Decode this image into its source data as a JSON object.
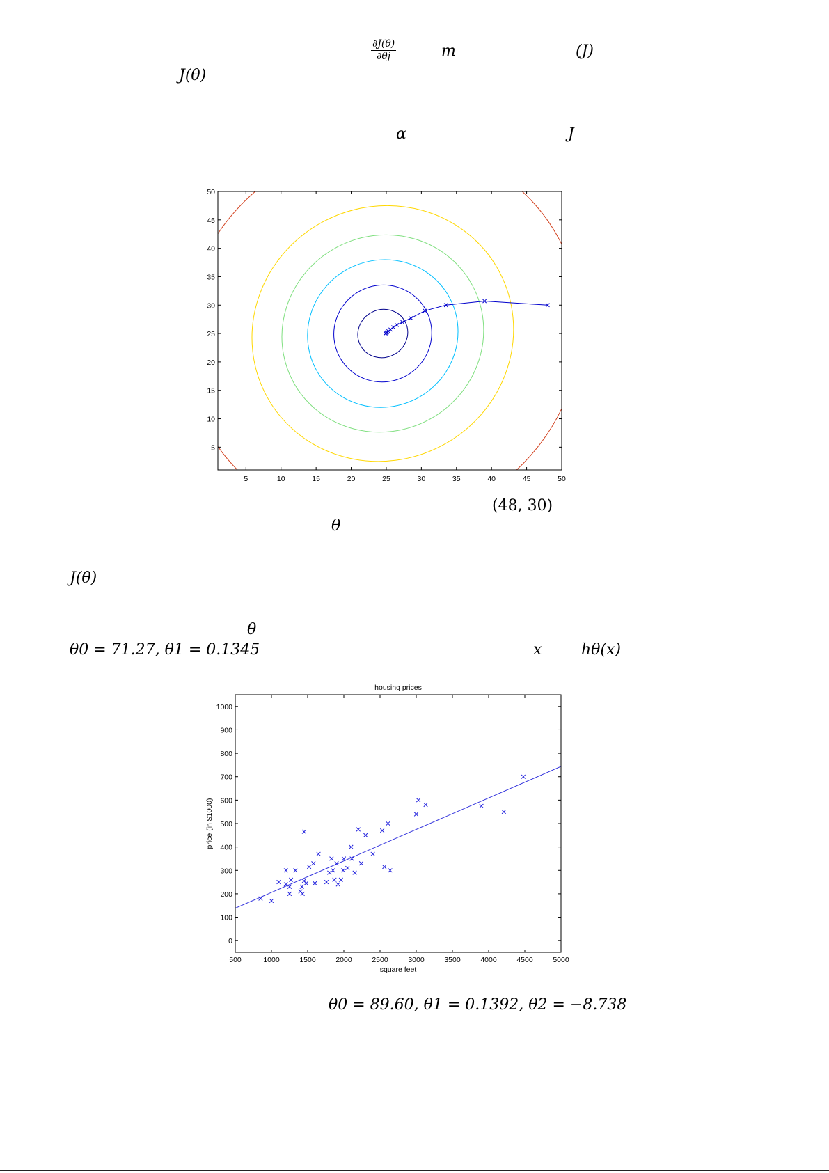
{
  "text": {
    "dJ_num": "∂J(θ)",
    "dJ_den": "∂θj",
    "m_var": "m",
    "J_paren": "(J)",
    "J_theta_1": "J(θ)",
    "alpha": "α",
    "J_var": "J",
    "start_point": "(48,  30)",
    "theta_1": "θ",
    "J_theta_2": "J(θ)",
    "theta_2": "θ",
    "fit1_params": "θ0 = 71.27,  θ1 = 0.1345",
    "x_var": "x",
    "h_theta": "hθ(x)",
    "fit2_params": "θ0 = 89.60,  θ1 = 0.1392,  θ2 = −8.738"
  },
  "colors": {
    "contour_levels": [
      "#00008b",
      "#0000cd",
      "#00bfff",
      "#7fdf7f",
      "#ffd700",
      "#d2401e",
      "#8b0000"
    ],
    "path": "#0000cc",
    "scatter": "#2222dd",
    "fit_line": "#3333dd",
    "axis": "#000000"
  },
  "chart_data": [
    {
      "type": "contour",
      "title": "",
      "xlabel": "",
      "ylabel": "",
      "xlim": [
        1,
        50
      ],
      "ylim": [
        1,
        50
      ],
      "xticks": [
        5,
        10,
        15,
        20,
        25,
        30,
        35,
        40,
        45,
        50
      ],
      "yticks": [
        5,
        10,
        15,
        20,
        25,
        30,
        35,
        40,
        45,
        50
      ],
      "grid": false,
      "ellipses": [
        {
          "cx": 24.5,
          "cy": 25,
          "rx": 3.6,
          "ry": 4.2,
          "angle": -28
        },
        {
          "cx": 24.5,
          "cy": 25,
          "rx": 7.0,
          "ry": 8.5,
          "angle": -28
        },
        {
          "cx": 24.5,
          "cy": 25,
          "rx": 10.8,
          "ry": 12.9,
          "angle": -28
        },
        {
          "cx": 24.5,
          "cy": 25,
          "rx": 14.5,
          "ry": 17.2,
          "angle": -28
        },
        {
          "cx": 24.5,
          "cy": 25,
          "rx": 18.8,
          "ry": 22.3,
          "angle": -28
        },
        {
          "cx": 24.5,
          "cy": 25,
          "rx": 28.5,
          "ry": 33.5,
          "angle": -28
        },
        {
          "cx": 24.5,
          "cy": 25,
          "rx": 38.0,
          "ry": 45.0,
          "angle": -28
        }
      ],
      "descent_path": [
        [
          48,
          30
        ],
        [
          39,
          30.7
        ],
        [
          33.5,
          30
        ],
        [
          30.5,
          29
        ],
        [
          28.5,
          27.7
        ],
        [
          27.3,
          27
        ],
        [
          26.5,
          26.5
        ],
        [
          26,
          26.1
        ],
        [
          25.6,
          25.7
        ],
        [
          25.3,
          25.4
        ],
        [
          25.1,
          25.2
        ],
        [
          25,
          25.1
        ],
        [
          24.9,
          25
        ]
      ]
    },
    {
      "type": "scatter",
      "title": "housing prices",
      "xlabel": "square feet",
      "ylabel": "price (in $1000)",
      "xlim": [
        500,
        5000
      ],
      "ylim": [
        -50,
        1050
      ],
      "xticks": [
        500,
        1000,
        1500,
        2000,
        2500,
        3000,
        3500,
        4000,
        4500,
        5000
      ],
      "yticks": [
        0,
        100,
        200,
        300,
        400,
        500,
        600,
        700,
        800,
        900,
        1000
      ],
      "grid": false,
      "series": [
        {
          "marker": "x",
          "points": [
            [
              850,
              180
            ],
            [
              1000,
              170
            ],
            [
              1100,
              250
            ],
            [
              1200,
              300
            ],
            [
              1200,
              240
            ],
            [
              1250,
              230
            ],
            [
              1250,
              200
            ],
            [
              1270,
              260
            ],
            [
              1330,
              300
            ],
            [
              1400,
              210
            ],
            [
              1420,
              230
            ],
            [
              1430,
              200
            ],
            [
              1450,
              255
            ],
            [
              1450,
              465
            ],
            [
              1480,
              245
            ],
            [
              1520,
              315
            ],
            [
              1580,
              330
            ],
            [
              1600,
              245
            ],
            [
              1650,
              370
            ],
            [
              1760,
              250
            ],
            [
              1800,
              290
            ],
            [
              1830,
              350
            ],
            [
              1850,
              300
            ],
            [
              1870,
              260
            ],
            [
              1900,
              330
            ],
            [
              1920,
              240
            ],
            [
              1960,
              260
            ],
            [
              1990,
              300
            ],
            [
              2000,
              350
            ],
            [
              2050,
              310
            ],
            [
              2100,
              400
            ],
            [
              2110,
              350
            ],
            [
              2150,
              290
            ],
            [
              2200,
              475
            ],
            [
              2240,
              330
            ],
            [
              2300,
              450
            ],
            [
              2400,
              370
            ],
            [
              2530,
              470
            ],
            [
              2560,
              315
            ],
            [
              2610,
              500
            ],
            [
              2640,
              300
            ],
            [
              3000,
              540
            ],
            [
              3030,
              600
            ],
            [
              3130,
              580
            ],
            [
              3900,
              575
            ],
            [
              4210,
              550
            ],
            [
              4480,
              700
            ]
          ]
        }
      ],
      "fit_line": {
        "intercept": 71.27,
        "slope": 0.1345
      }
    }
  ]
}
